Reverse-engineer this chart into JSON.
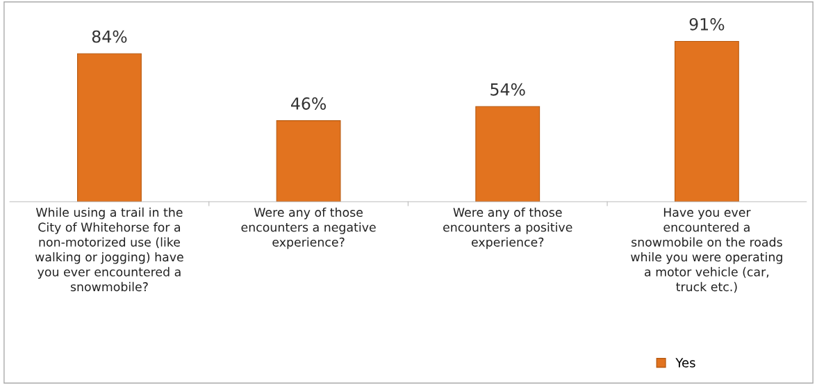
{
  "chart_data": {
    "type": "bar",
    "categories": [
      "While using a trail in the\nCity of Whitehorse for a\nnon-motorized use (like\nwalking or jogging) have\nyou ever encountered a\nsnowmobile?",
      "Were any of those\nencounters a negative\nexperience?",
      "Were any of those\nencounters a positive\nexperience?",
      "Have you ever\nencountered a\nsnowmobile on the roads\nwhile you were operating\na motor vehicle (car,\ntruck etc.)"
    ],
    "series": [
      {
        "name": "Yes",
        "color": "#e2731f",
        "values": [
          84,
          46,
          54,
          91
        ],
        "value_labels": [
          "84%",
          "46%",
          "54%",
          "91%"
        ]
      }
    ],
    "grid": false,
    "legend": "bottom right"
  }
}
